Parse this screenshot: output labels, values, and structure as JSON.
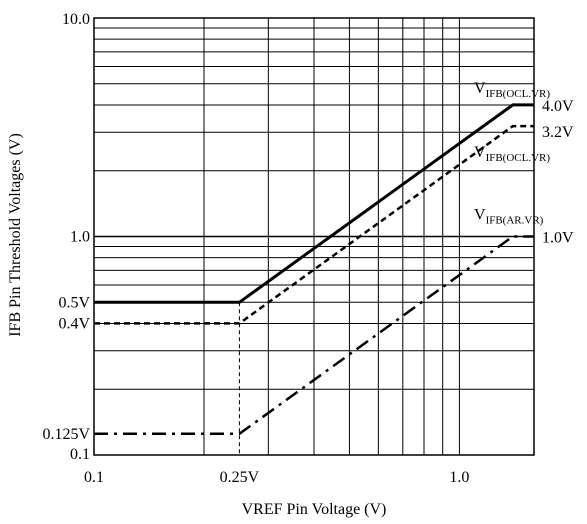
{
  "chart_data": {
    "type": "line",
    "xscale": "log",
    "yscale": "log",
    "xlim": [
      0.1,
      1.6
    ],
    "ylim": [
      0.1,
      10.0
    ],
    "grid": true,
    "xlabel": "VREF Pin Voltage (V)",
    "ylabel": "IFB Pin Threshold Voltages (V)",
    "x_ticks": [
      {
        "value": 0.1,
        "label": "0.1"
      },
      {
        "value": 0.25,
        "label": "0.25V"
      },
      {
        "value": 1.0,
        "label": "1.0"
      }
    ],
    "y_ticks": [
      {
        "value": 0.1,
        "label": "0.1"
      },
      {
        "value": 0.125,
        "label": "0.125V"
      },
      {
        "value": 0.4,
        "label": "0.4V"
      },
      {
        "value": 0.5,
        "label": "0.5V"
      },
      {
        "value": 1.0,
        "label": "1.0"
      },
      {
        "value": 10.0,
        "label": "10.0"
      }
    ],
    "series": [
      {
        "style": "solid",
        "points": [
          [
            0.1,
            0.5
          ],
          [
            0.25,
            0.5
          ],
          [
            1.4,
            4.0
          ],
          [
            1.6,
            4.0
          ]
        ],
        "label_main": "V",
        "label_sub": "IFB(OCL.VR)",
        "end_value_label": "4.0V"
      },
      {
        "style": "dashed",
        "points": [
          [
            0.1,
            0.4
          ],
          [
            0.25,
            0.4
          ],
          [
            1.4,
            3.2
          ],
          [
            1.6,
            3.2
          ]
        ],
        "label_main": "V",
        "label_sub": "IFB(OCL.VR)",
        "end_value_label": "3.2V"
      },
      {
        "style": "dashdot",
        "points": [
          [
            0.1,
            0.125
          ],
          [
            0.25,
            0.125
          ],
          [
            1.4,
            1.0
          ],
          [
            1.6,
            1.0
          ]
        ],
        "label_main": "V",
        "label_sub": "IFB(AR.VR)",
        "end_value_label": "1.0V"
      }
    ],
    "guide_x": 0.25
  }
}
